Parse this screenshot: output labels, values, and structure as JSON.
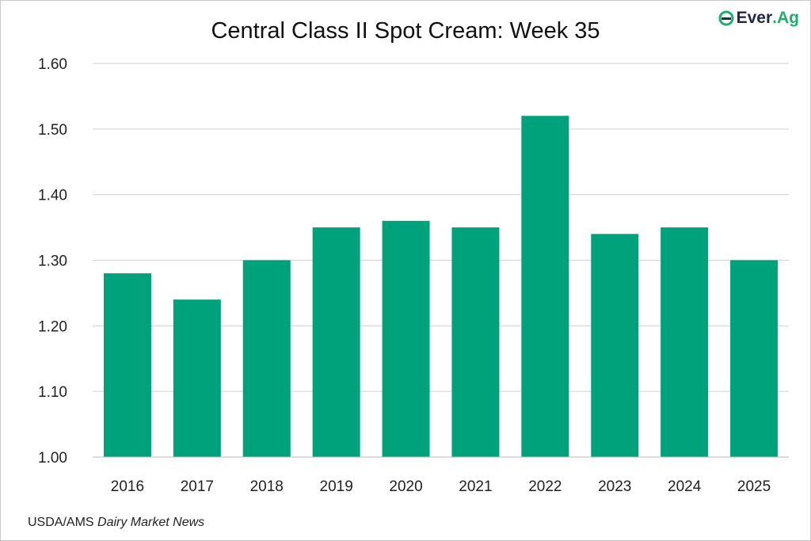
{
  "chart_data": {
    "type": "bar",
    "title": "Central Class II Spot Cream: Week 35",
    "categories": [
      "2016",
      "2017",
      "2018",
      "2019",
      "2020",
      "2021",
      "2022",
      "2023",
      "2024",
      "2025"
    ],
    "values": [
      1.28,
      1.24,
      1.3,
      1.35,
      1.36,
      1.35,
      1.52,
      1.34,
      1.35,
      1.3
    ],
    "xlabel": "",
    "ylabel": "",
    "ylim": [
      1.0,
      1.6
    ],
    "yticks": [
      "1.00",
      "1.10",
      "1.20",
      "1.30",
      "1.40",
      "1.50",
      "1.60"
    ],
    "grid": true,
    "bar_color": "#00a27b"
  },
  "source": {
    "prefix": "USDA/AMS ",
    "italic": "Dairy Market News"
  },
  "logo": {
    "text1": "Ever",
    "text2": ".Ag"
  }
}
